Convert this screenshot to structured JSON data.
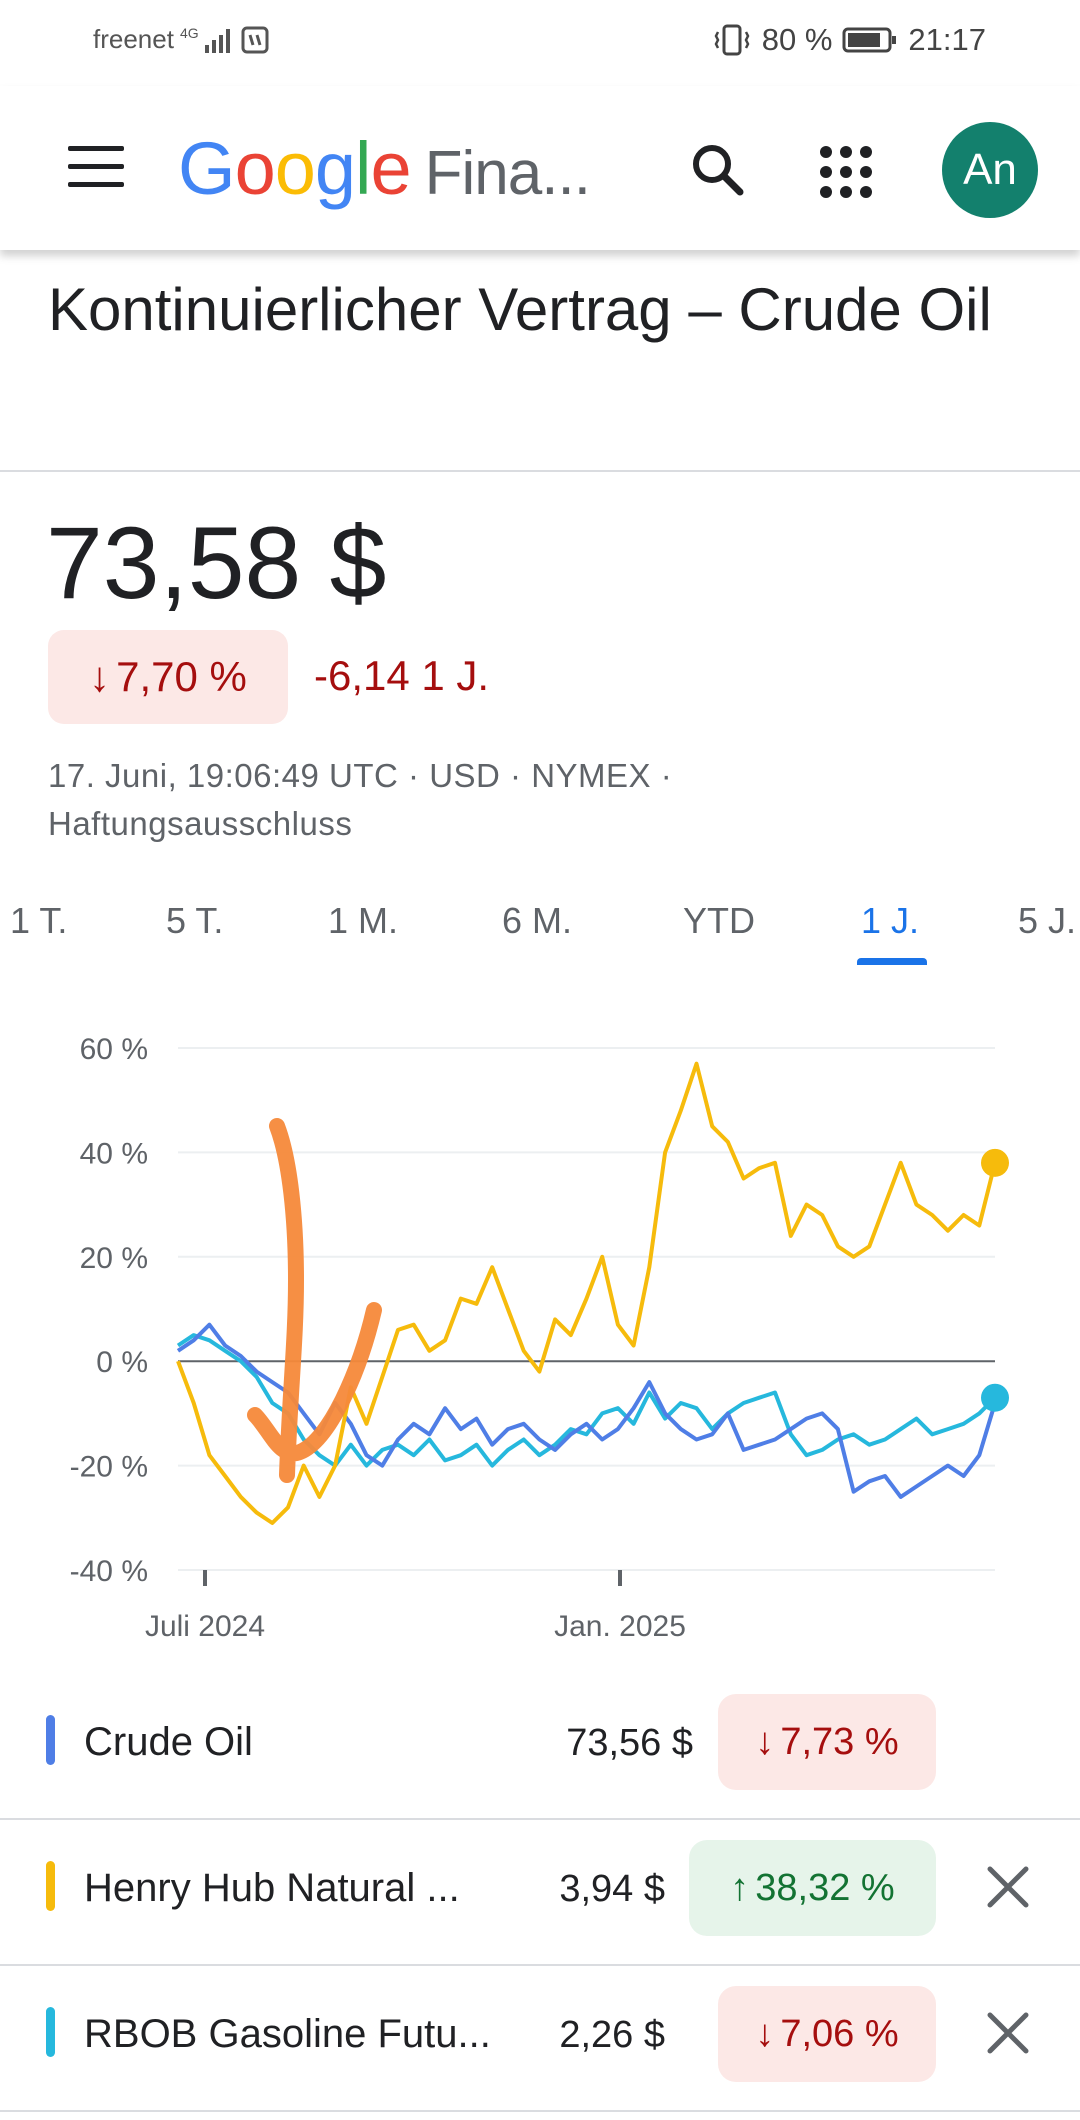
{
  "status_bar": {
    "carrier": "freenet",
    "network": "4G",
    "battery": "80 %",
    "time": "21:17"
  },
  "app_bar": {
    "logo_google": [
      "G",
      "o",
      "o",
      "g",
      "l",
      "e"
    ],
    "logo_colors": [
      "#4285F4",
      "#EA4335",
      "#FBBC05",
      "#4285F4",
      "#34A853",
      "#EA4335"
    ],
    "logo_suffix": "Fina...",
    "avatar_text": "An",
    "avatar_color": "#13806d"
  },
  "page": {
    "title": "Kontinuierlicher Vertrag – Crude Oil",
    "price": "73,58 $",
    "change_pct": "7,70 %",
    "change_abs": "-6,14 1 J.",
    "meta_line1": "17. Juni, 19:06:49 UTC · USD · NYMEX ·",
    "meta_line2": "Haftungsausschluss"
  },
  "tabs": [
    {
      "label": "1 T."
    },
    {
      "label": "5 T."
    },
    {
      "label": "1 M."
    },
    {
      "label": "6 M."
    },
    {
      "label": "YTD"
    },
    {
      "label": "1 J.",
      "active": true
    },
    {
      "label": "5 J."
    }
  ],
  "chart_data": {
    "type": "line",
    "ylim": [
      -40,
      60
    ],
    "y_ticks": [
      "60 %",
      "40 %",
      "20 %",
      "0 %",
      "-20 %",
      "-40 %"
    ],
    "x_ticks": [
      "Juli 2024",
      "Jan. 2025"
    ],
    "series": [
      {
        "name": "Crude Oil",
        "color": "#4f7ee6",
        "values": [
          2,
          4,
          7,
          3,
          1,
          -2,
          -4,
          -6,
          -10,
          -14,
          -8,
          -12,
          -18,
          -20,
          -15,
          -12,
          -14,
          -9,
          -13,
          -11,
          -16,
          -13,
          -12,
          -15,
          -17,
          -14,
          -12,
          -15,
          -13,
          -9,
          -4,
          -10,
          -13,
          -15,
          -14,
          -10,
          -17,
          -16,
          -15,
          -13,
          -11,
          -10,
          -13,
          -25,
          -23,
          -22,
          -26,
          -24,
          -22,
          -20,
          -22,
          -18,
          -8
        ]
      },
      {
        "name": "Henry Hub Natural ...",
        "color": "#f6bb0c",
        "values": [
          0,
          -8,
          -18,
          -22,
          -26,
          -29,
          -31,
          -28,
          -20,
          -26,
          -20,
          -5,
          -12,
          -3,
          6,
          7,
          2,
          4,
          12,
          11,
          18,
          10,
          2,
          -2,
          8,
          5,
          12,
          20,
          7,
          3,
          18,
          40,
          48,
          57,
          45,
          42,
          35,
          37,
          38,
          24,
          30,
          28,
          22,
          20,
          22,
          30,
          38,
          30,
          28,
          25,
          28,
          26,
          38
        ]
      },
      {
        "name": "RBOB Gasoline Futu...",
        "color": "#26b8dd",
        "values": [
          3,
          5,
          4,
          2,
          0,
          -3,
          -8,
          -10,
          -15,
          -18,
          -20,
          -16,
          -20,
          -17,
          -16,
          -18,
          -15,
          -19,
          -18,
          -16,
          -20,
          -17,
          -15,
          -18,
          -16,
          -13,
          -14,
          -10,
          -9,
          -12,
          -6,
          -11,
          -8,
          -9,
          -13,
          -10,
          -8,
          -7,
          -6,
          -14,
          -18,
          -17,
          -15,
          -14,
          -16,
          -15,
          -13,
          -11,
          -14,
          -13,
          -12,
          -10,
          -7
        ]
      }
    ]
  },
  "legend": [
    {
      "name": "Crude Oil",
      "value": "73,56 $",
      "pct": "7,73 %",
      "dir": "down",
      "color": "#4f7ee6",
      "removable": false
    },
    {
      "name": "Henry Hub Natural ...",
      "value": "3,94 $",
      "pct": "38,32 %",
      "dir": "up",
      "color": "#f6bb0c",
      "removable": true
    },
    {
      "name": "RBOB Gasoline Futu...",
      "value": "2,26 $",
      "pct": "7,06 %",
      "dir": "down",
      "color": "#26b8dd",
      "removable": true
    }
  ]
}
